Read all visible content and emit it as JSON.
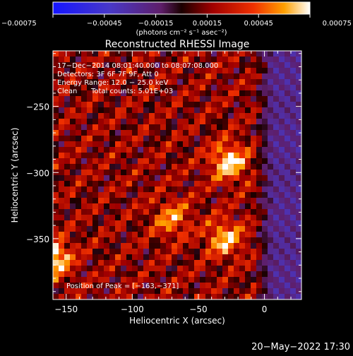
{
  "chart_data": {
    "type": "heatmap",
    "title": "Reconstructed RHESSI Image",
    "xlabel": "Heliocentric X (arcsec)",
    "ylabel": "Heliocentric Y (arcsec)",
    "xlim": [
      -160,
      28
    ],
    "ylim": [
      -396,
      -208
    ],
    "x_ticks": [
      -150,
      -100,
      -50,
      0
    ],
    "x_tick_labels": [
      "−150",
      "−100",
      "−50",
      "0"
    ],
    "y_ticks": [
      -250,
      -300,
      -350
    ],
    "y_tick_labels": [
      "−250",
      "−300",
      "−350"
    ],
    "colorbar": {
      "range": [
        -0.00075,
        0.00075
      ],
      "ticks": [
        -0.00075,
        -0.00045,
        -0.00015,
        0.00015,
        0.00045,
        0.00075
      ],
      "tick_labels": [
        "−0.00075",
        "−0.00045",
        "−0.00015",
        "0.00015",
        "0.00045",
        "0.00075"
      ],
      "unit_label": "(photons cm⁻² s⁻¹ asec⁻²)"
    },
    "annotations": {
      "time_range": "17−Dec−2014 08:01:40.000 to 08:07:08.000",
      "detectors": "Detectors: 3F 6F 7F 9F, Att 0",
      "energy_range": "Energy Range: 12.0 − 25.0 keV",
      "method": "Clean",
      "total_counts": "Total counts: 5.01E+03",
      "peak_position": "Position of Peak = [−163,−371]"
    },
    "peak": [
      -163,
      -371
    ],
    "hotspots": [
      {
        "x": -27,
        "y": -292,
        "value": 0.0006
      },
      {
        "x": -30,
        "y": -350,
        "value": 0.0005
      },
      {
        "x": -160,
        "y": -365,
        "value": 0.00065
      },
      {
        "x": -70,
        "y": -335,
        "value": 0.0004
      }
    ],
    "negative_region_x_min": 0
  },
  "footer": {
    "date": "20−May−2022 17:30"
  }
}
